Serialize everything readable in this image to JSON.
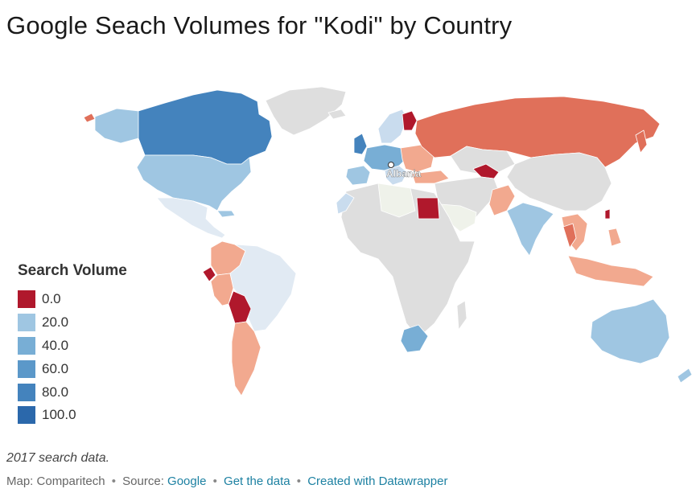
{
  "title": "Google Seach Volumes for \"Kodi\" by Country",
  "map_annotation": "Albania",
  "legend": {
    "title": "Search Volume",
    "items": [
      {
        "label": "0.0",
        "color": "#b0182c"
      },
      {
        "label": "20.0",
        "color": "#9fc6e2"
      },
      {
        "label": "40.0",
        "color": "#78aed5"
      },
      {
        "label": "60.0",
        "color": "#5b98c9"
      },
      {
        "label": "80.0",
        "color": "#4483bd"
      },
      {
        "label": "100.0",
        "color": "#2b68ab"
      }
    ]
  },
  "colors": {
    "no_data": "#dedede",
    "light_blue": "#c9dcee",
    "pale_blue": "#e1eaf3",
    "orange_red": "#e0705a",
    "salmon": "#f2a98f"
  },
  "caption": "2017 search data.",
  "footer": {
    "prefix": "Map: Comparitech",
    "sep": "•",
    "source_label": "Source:",
    "source_link": "Google",
    "get_data_link": "Get the data",
    "created_link": "Created with Datawrapper"
  }
}
